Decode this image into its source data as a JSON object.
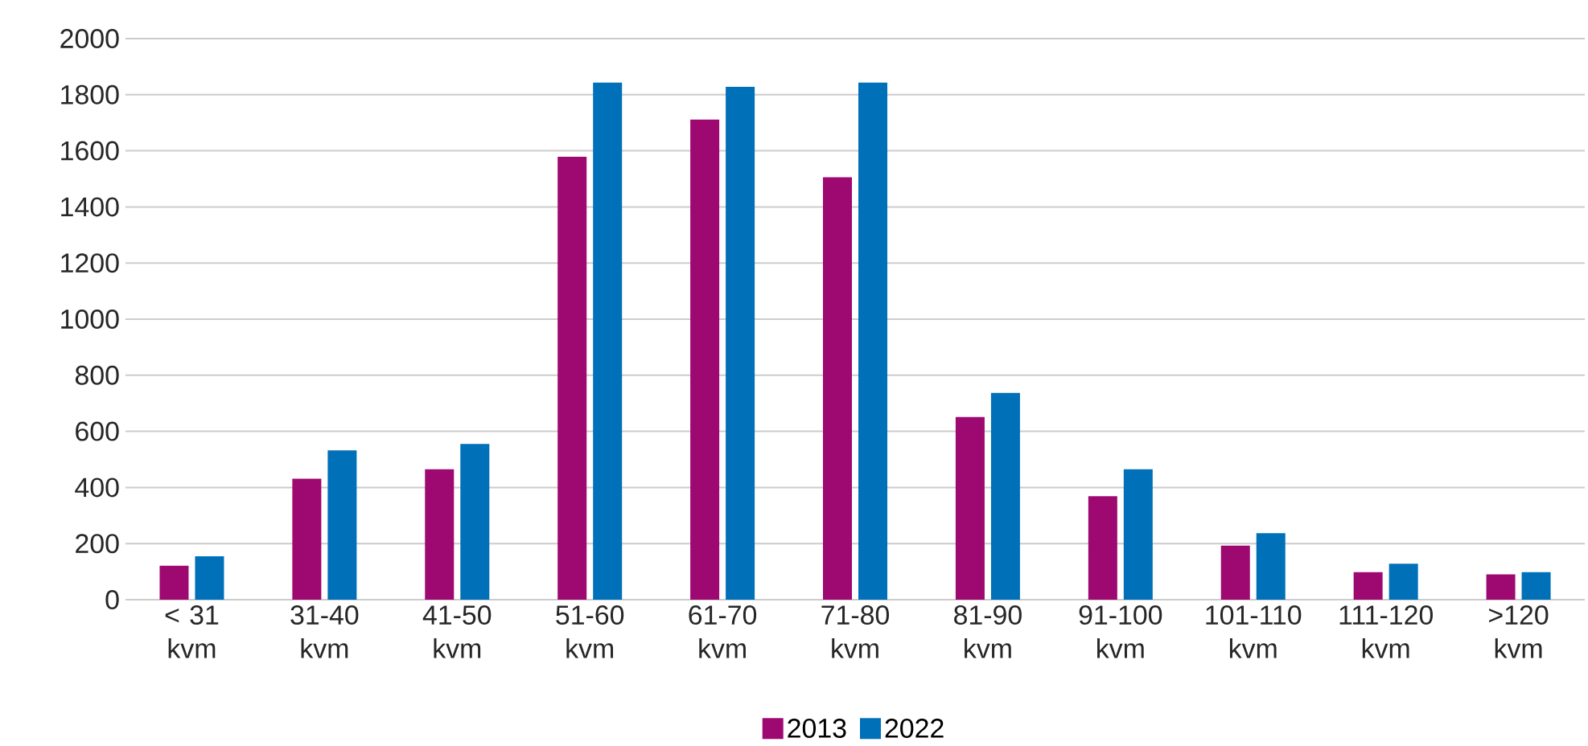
{
  "chart_data": {
    "type": "bar",
    "categories": [
      "< 31 kvm",
      "31-40 kvm",
      "41-50 kvm",
      "51-60 kvm",
      "61-70 kvm",
      "71-80 kvm",
      "81-90 kvm",
      "91-100 kvm",
      "101-110 kvm",
      "111-120 kvm",
      ">120 kvm"
    ],
    "series": [
      {
        "name": "2013",
        "color": "#9e0871",
        "values": [
          121,
          431,
          465,
          1579,
          1711,
          1506,
          651,
          369,
          193,
          98,
          90
        ]
      },
      {
        "name": "2022",
        "color": "#0070b8",
        "values": [
          155,
          532,
          555,
          1843,
          1828,
          1843,
          737,
          465,
          237,
          128,
          98
        ]
      }
    ],
    "ylim": [
      0,
      2000
    ],
    "yticks": [
      0,
      200,
      400,
      600,
      800,
      1000,
      1200,
      1400,
      1600,
      1800,
      2000
    ],
    "grid": "y",
    "legend": "bottom"
  }
}
